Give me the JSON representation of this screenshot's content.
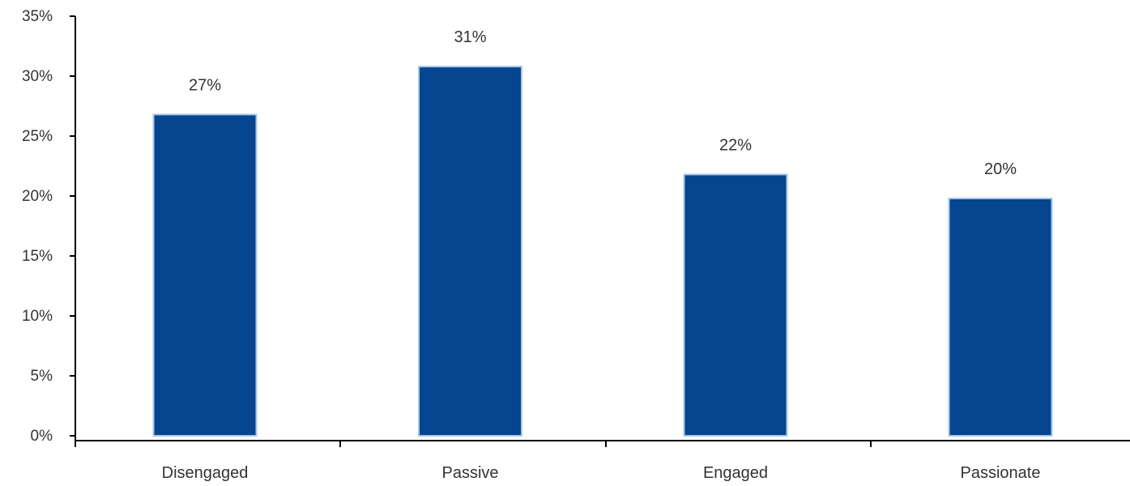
{
  "chart_data": {
    "type": "bar",
    "categories": [
      "Disengaged",
      "Passive",
      "Engaged",
      "Passionate"
    ],
    "values": [
      27,
      31,
      22,
      20
    ],
    "value_labels": [
      "27%",
      "31%",
      "22%",
      "20%"
    ],
    "ylim": [
      0,
      35
    ],
    "yticks": [
      0,
      5,
      10,
      15,
      20,
      25,
      30,
      35
    ],
    "ytick_labels": [
      "0%",
      "5%",
      "10%",
      "15%",
      "20%",
      "25%",
      "30%",
      "35%"
    ],
    "grid": false,
    "legend": "none",
    "colors": {
      "bar": "#06458F",
      "bar_outline": "#A9C7EA",
      "axis": "#000000",
      "text": "#333333"
    }
  }
}
